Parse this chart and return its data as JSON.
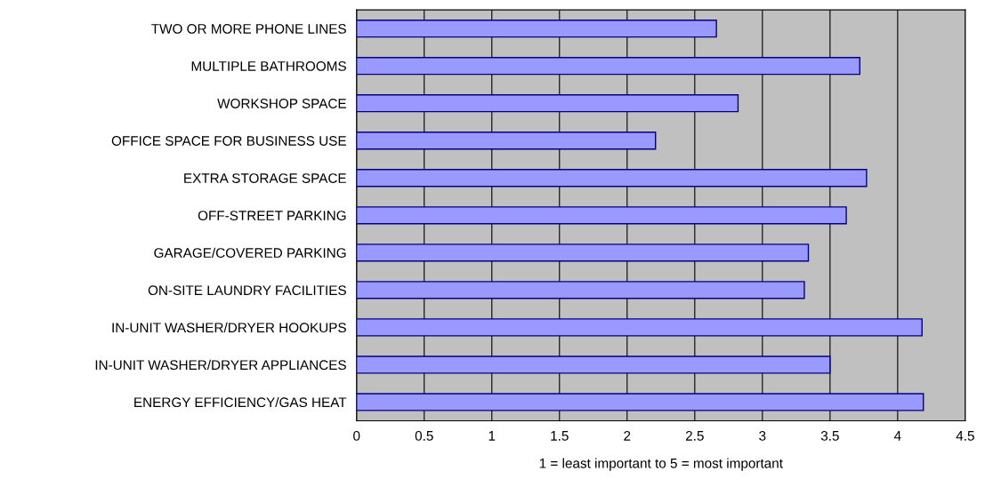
{
  "chart_data": {
    "type": "bar",
    "orientation": "horizontal",
    "xlabel": "1 = least important to 5 = most important",
    "categories": [
      "TWO OR MORE PHONE LINES",
      "MULTIPLE BATHROOMS",
      "WORKSHOP SPACE",
      "OFFICE SPACE FOR BUSINESS USE",
      "EXTRA STORAGE SPACE",
      "OFF-STREET PARKING",
      "GARAGE/COVERED PARKING",
      "ON-SITE LAUNDRY FACILITIES",
      "IN-UNIT WASHER/DRYER HOOKUPS",
      "IN-UNIT WASHER/DRYER APPLIANCES",
      "ENERGY EFFICIENCY/GAS HEAT"
    ],
    "values": [
      2.66,
      3.72,
      2.82,
      2.21,
      3.77,
      3.62,
      3.34,
      3.31,
      4.18,
      3.5,
      4.19
    ],
    "color": "#9999ff",
    "xlim": [
      0,
      4.5
    ],
    "xticks": [
      0,
      0.5,
      1,
      1.5,
      2,
      2.5,
      3,
      3.5,
      4,
      4.5
    ],
    "grid": "x"
  }
}
